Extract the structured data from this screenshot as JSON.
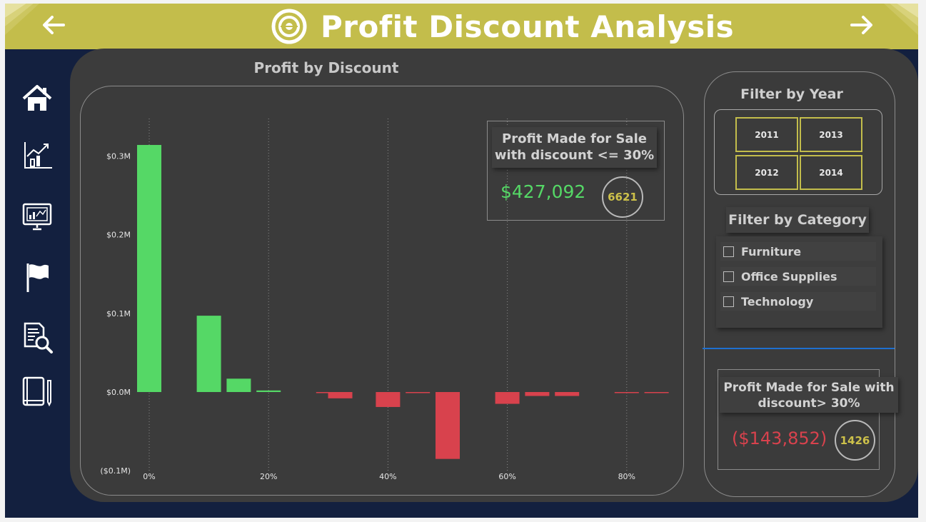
{
  "header": {
    "title": "Profit Discount Analysis",
    "back_icon": "arrow-left-icon",
    "forward_icon": "arrow-right-icon",
    "logo_icon": "target-icon"
  },
  "colors": {
    "banner": "#c3bd4b",
    "background": "#13203f",
    "panel": "#3c3c3c",
    "positive": "#55d866",
    "negative": "#d8424d",
    "accent": "#cdc14a",
    "divider": "#1e6fd0"
  },
  "sidebar": {
    "items": [
      {
        "icon": "home-icon"
      },
      {
        "icon": "growth-chart-icon"
      },
      {
        "icon": "monitor-dashboard-icon"
      },
      {
        "icon": "flag-icon"
      },
      {
        "icon": "document-search-icon"
      },
      {
        "icon": "book-icon"
      }
    ]
  },
  "chart_data": {
    "type": "bar",
    "title": "Profit by Discount",
    "xlabel": "",
    "ylabel": "",
    "x_tick_labels": [
      "0%",
      "20%",
      "40%",
      "60%",
      "80%"
    ],
    "y_tick_labels": [
      "($0.1M)",
      "$0.0M",
      "$0.1M",
      "$0.2M",
      "$0.3M"
    ],
    "ylim": [
      -0.1,
      0.33
    ],
    "grid": "vertical dotted",
    "units": "$M",
    "x": [
      0,
      10,
      15,
      20,
      30,
      32,
      40,
      45,
      50,
      60,
      65,
      70,
      80,
      85
    ],
    "values": [
      0.314,
      0.097,
      0.017,
      0.002,
      -0.001,
      -0.008,
      -0.019,
      -0.001,
      -0.085,
      -0.015,
      -0.005,
      -0.005,
      -0.001,
      -0.001
    ]
  },
  "kpi_low": {
    "title_line1": "Profit Made for Sale",
    "title_line2": "with discount <= 30%",
    "value": "$427,092",
    "count": "6621"
  },
  "kpi_high": {
    "title_line1": "Profit Made for Sale with",
    "title_line2": "discount> 30%",
    "value": "($143,852)",
    "count": "1426"
  },
  "filters": {
    "year_title": "Filter by Year",
    "years": [
      "2011",
      "2013",
      "2012",
      "2014"
    ],
    "category_title": "Filter by Category",
    "categories": [
      "Furniture",
      "Office Supplies",
      "Technology"
    ]
  }
}
